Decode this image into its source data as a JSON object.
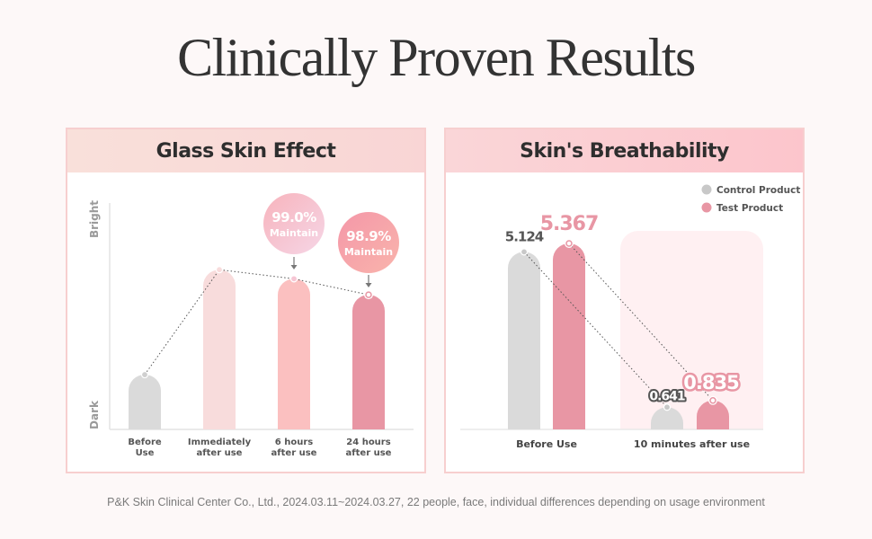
{
  "page": {
    "title": "Clinically Proven Results",
    "footnote": "P&K Skin Clinical Center Co., Ltd., 2024.03.11~2024.03.27, 22 people, face, individual differences depending on usage environment"
  },
  "colors": {
    "background": "#fdf8f8",
    "gray_bar": "#dadada",
    "light_pink_bar": "#f8dcdc",
    "mid_pink_bar": "#fbc0c0",
    "deep_pink_bar": "#e896a4",
    "highlight_box": "#fff0f2",
    "text_dark": "#333333",
    "pink_text": "#e896a4"
  },
  "chart_data": [
    {
      "type": "bar",
      "title": "Glass Skin Effect",
      "ylabel_top": "Bright",
      "ylabel_bottom": "Dark",
      "categories": [
        "Before\nUse",
        "Immediately\nafter use",
        "6 hours\nafter use",
        "24 hours\nafter use"
      ],
      "category_lines": [
        [
          "Before",
          "Use"
        ],
        [
          "Immediately",
          "after use"
        ],
        [
          "6 hours",
          "after use"
        ],
        [
          "24 hours",
          "after use"
        ]
      ],
      "values": [
        24,
        70,
        66,
        59
      ],
      "value_units": "relative brightness (unlabeled scale, % of axis height)",
      "ylim": [
        0,
        100
      ],
      "trend_line": "dotted",
      "annotations": [
        {
          "category_index": 2,
          "value": "99.0%",
          "label": "Maintain"
        },
        {
          "category_index": 3,
          "value": "98.9%",
          "label": "Maintain"
        }
      ]
    },
    {
      "type": "bar",
      "title": "Skin's Breathability",
      "categories": [
        "Before Use",
        "10 minutes after use"
      ],
      "legend": [
        "Control Product",
        "Test Product"
      ],
      "legend_position": "top-right",
      "series": [
        {
          "name": "Control Product",
          "values": [
            5.124,
            0.641
          ],
          "labels": [
            "5.124",
            "0.641"
          ]
        },
        {
          "name": "Test Product",
          "values": [
            5.367,
            0.835
          ],
          "labels": [
            "5.367",
            "0.835"
          ]
        }
      ],
      "highlighted_category": "10 minutes after use",
      "trend_line": "dotted"
    }
  ]
}
